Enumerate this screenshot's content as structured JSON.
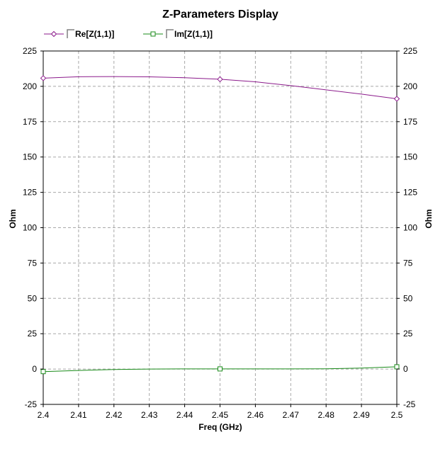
{
  "chart_data": {
    "type": "line",
    "title": "Z-Parameters Display",
    "xlabel": "Freq (GHz)",
    "ylabel_left": "Ohm",
    "ylabel_right": "Ohm",
    "xlim": [
      2.4,
      2.5
    ],
    "ylim": [
      -25,
      225
    ],
    "x_ticks": [
      "2.4",
      "2.41",
      "2.42",
      "2.43",
      "2.44",
      "2.45",
      "2.46",
      "2.47",
      "2.48",
      "2.49",
      "2.5"
    ],
    "y_ticks": [
      "225",
      "200",
      "175",
      "150",
      "125",
      "100",
      "75",
      "50",
      "25",
      "0",
      "-25"
    ],
    "grid": true,
    "legend_position": "top-left",
    "series": [
      {
        "name": "Re[Z(1,1)]",
        "color": "#8B1A8B",
        "marker": "diamond",
        "marker_x": [
          2.4,
          2.45,
          2.5
        ],
        "x": [
          2.4,
          2.41,
          2.42,
          2.43,
          2.44,
          2.45,
          2.46,
          2.47,
          2.48,
          2.49,
          2.5
        ],
        "values": [
          205.8,
          206.8,
          206.9,
          206.7,
          206.1,
          205.0,
          203.2,
          200.5,
          197.5,
          194.5,
          191.2
        ]
      },
      {
        "name": "Im[Z(1,1)]",
        "color": "#1A8B1A",
        "marker": "square",
        "marker_x": [
          2.4,
          2.45,
          2.5
        ],
        "x": [
          2.4,
          2.41,
          2.42,
          2.43,
          2.44,
          2.45,
          2.46,
          2.47,
          2.48,
          2.49,
          2.5
        ],
        "values": [
          -1.8,
          -1.0,
          -0.3,
          0.0,
          0.1,
          0.1,
          0.1,
          0.1,
          0.2,
          0.7,
          1.6
        ]
      }
    ]
  }
}
